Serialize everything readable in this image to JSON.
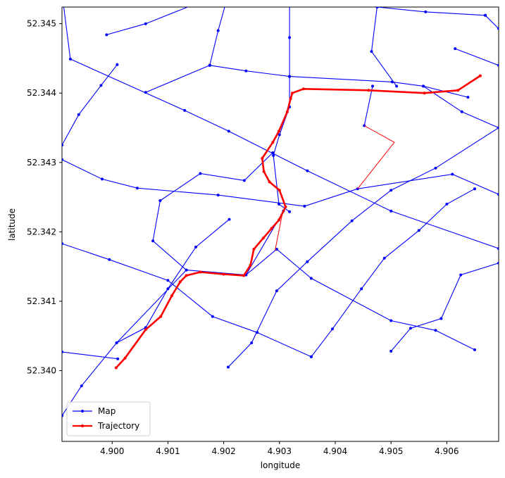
{
  "chart_data": {
    "type": "line",
    "title": "",
    "xlabel": "longitude",
    "ylabel": "latitude",
    "xlim": [
      4.8991,
      4.90693
    ],
    "ylim": [
      52.33898,
      52.34524
    ],
    "grid": false,
    "legend_placement": "lower-left",
    "x_ticks": [
      4.9,
      4.901,
      4.902,
      4.903,
      4.904,
      4.905,
      4.906
    ],
    "x_tick_labels": [
      "4.900",
      "4.901",
      "4.902",
      "4.903",
      "4.904",
      "4.905",
      "4.906"
    ],
    "y_ticks": [
      52.34,
      52.341,
      52.342,
      52.343,
      52.344,
      52.345
    ],
    "y_tick_labels": [
      "52.340",
      "52.341",
      "52.342",
      "52.343",
      "52.344",
      "52.345"
    ],
    "colors": {
      "map": "#0000ff",
      "trajectory": "#ff0000"
    },
    "series": [
      {
        "name": "Map",
        "color": "#0000ff",
        "segments": [
          [
            [
              4.8991,
              52.34544
            ],
            [
              4.89925,
              52.34449
            ],
            [
              4.9013,
              52.34375
            ],
            [
              4.90209,
              52.34345
            ],
            [
              4.9035,
              52.34288
            ],
            [
              4.905,
              52.3423
            ],
            [
              4.90693,
              52.34176
            ]
          ],
          [
            [
              4.8991,
              52.34304
            ],
            [
              4.89982,
              52.34276
            ],
            [
              4.90045,
              52.34263
            ],
            [
              4.9019,
              52.34253
            ],
            [
              4.90345,
              52.34237
            ],
            [
              4.9044,
              52.34262
            ],
            [
              4.9061,
              52.34283
            ],
            [
              4.90693,
              52.34254
            ]
          ],
          [
            [
              4.8991,
              52.34183
            ],
            [
              4.89995,
              52.3416
            ],
            [
              4.901,
              52.3413
            ],
            [
              4.9018,
              52.34078
            ],
            [
              4.9026,
              52.34055
            ],
            [
              4.90357,
              52.3402
            ]
          ],
          [
            [
              4.8991,
              52.34325
            ],
            [
              4.8994,
              52.34369
            ],
            [
              4.8998,
              52.34411
            ],
            [
              4.90009,
              52.34441
            ]
          ],
          [
            [
              4.8999,
              52.34484
            ],
            [
              4.9006,
              52.345
            ],
            [
              4.90154,
              52.3453
            ]
          ],
          [
            [
              4.9006,
              52.34401
            ],
            [
              4.90175,
              52.3444
            ]
          ],
          [
            [
              4.90175,
              52.3444
            ],
            [
              4.9024,
              52.34432
            ],
            [
              4.90318,
              52.34424
            ],
            [
              4.90502,
              52.34416
            ],
            [
              4.90558,
              52.3441
            ],
            [
              4.90638,
              52.34394
            ]
          ],
          [
            [
              4.90175,
              52.3444
            ],
            [
              4.9019,
              52.3449
            ],
            [
              4.90209,
              52.34545
            ]
          ],
          [
            [
              4.90318,
              52.34424
            ],
            [
              4.90318,
              52.3448
            ],
            [
              4.90318,
              52.34545
            ]
          ],
          [
            [
              4.90318,
              52.34424
            ],
            [
              4.90318,
              52.3438
            ],
            [
              4.903,
              52.3434
            ],
            [
              4.90289,
              52.3431
            ],
            [
              4.90299,
              52.3424
            ],
            [
              4.90318,
              52.34229
            ]
          ],
          [
            [
              4.90288,
              52.34314
            ],
            [
              4.90237,
              52.34274
            ],
            [
              4.90158,
              52.34284
            ],
            [
              4.90086,
              52.34245
            ],
            [
              4.90073,
              52.34187
            ],
            [
              4.90133,
              52.34145
            ],
            [
              4.9024,
              52.34138
            ],
            [
              4.90307,
              52.3423
            ]
          ],
          [
            [
              4.90133,
              52.34145
            ],
            [
              4.90008,
              52.3404
            ],
            [
              4.89945,
              52.33978
            ],
            [
              4.8991,
              52.33935
            ]
          ],
          [
            [
              4.8991,
              52.34027
            ],
            [
              4.9001,
              52.34017
            ]
          ],
          [
            [
              4.90008,
              52.3404
            ],
            [
              4.9006,
              52.34062
            ],
            [
              4.901,
              52.34118
            ],
            [
              4.9015,
              52.34178
            ],
            [
              4.9021,
              52.34218
            ]
          ],
          [
            [
              4.9024,
              52.34138
            ],
            [
              4.90295,
              52.34175
            ],
            [
              4.90357,
              52.34133
            ],
            [
              4.905,
              52.34072
            ],
            [
              4.9058,
              52.34058
            ],
            [
              4.9065,
              52.3403
            ]
          ],
          [
            [
              4.90208,
              52.34005
            ],
            [
              4.9025,
              52.3404
            ],
            [
              4.90295,
              52.34115
            ],
            [
              4.9035,
              52.34157
            ],
            [
              4.9043,
              52.34216
            ],
            [
              4.905,
              52.3426
            ],
            [
              4.9058,
              52.34292
            ],
            [
              4.90693,
              52.3435
            ]
          ],
          [
            [
              4.90357,
              52.3402
            ],
            [
              4.90395,
              52.3406
            ],
            [
              4.90447,
              52.34118
            ],
            [
              4.90488,
              52.34162
            ],
            [
              4.9055,
              52.34202
            ],
            [
              4.906,
              52.3424
            ],
            [
              4.9065,
              52.34262
            ]
          ],
          [
            [
              4.905,
              52.34028
            ],
            [
              4.90535,
              52.34061
            ],
            [
              4.9059,
              52.34075
            ],
            [
              4.90625,
              52.34138
            ],
            [
              4.90693,
              52.34155
            ]
          ],
          [
            [
              4.9051,
              52.3441
            ],
            [
              4.90465,
              52.3446
            ],
            [
              4.90475,
              52.34524
            ]
          ],
          [
            [
              4.90452,
              52.34353
            ],
            [
              4.90467,
              52.3441
            ]
          ],
          [
            [
              4.90475,
              52.34524
            ],
            [
              4.90562,
              52.34517
            ],
            [
              4.90669,
              52.34512
            ]
          ],
          [
            [
              4.90669,
              52.34512
            ],
            [
              4.90693,
              52.34493
            ]
          ],
          [
            [
              4.90615,
              52.34464
            ],
            [
              4.90693,
              52.3444
            ]
          ],
          [
            [
              4.90558,
              52.3441
            ],
            [
              4.90627,
              52.34373
            ],
            [
              4.90693,
              52.3435
            ]
          ]
        ]
      },
      {
        "name": "Trajectory",
        "color": "#ff0000",
        "points": [
          [
            4.90007,
            52.34004
          ],
          [
            4.90023,
            52.34018
          ],
          [
            4.9006,
            52.34059
          ],
          [
            4.90087,
            52.34078
          ],
          [
            4.90107,
            52.34108
          ],
          [
            4.90122,
            52.34128
          ],
          [
            4.90133,
            52.34137
          ],
          [
            4.90158,
            52.34142
          ],
          [
            4.902,
            52.34139
          ],
          [
            4.90236,
            52.34137
          ],
          [
            4.90248,
            52.34152
          ],
          [
            4.90254,
            52.34175
          ],
          [
            4.90271,
            52.34191
          ],
          [
            4.90286,
            52.34205
          ],
          [
            4.90299,
            52.34217
          ],
          [
            4.90311,
            52.34236
          ],
          [
            4.903,
            52.3426
          ],
          [
            4.90282,
            52.34272
          ],
          [
            4.90272,
            52.34287
          ],
          [
            4.90269,
            52.34306
          ],
          [
            4.90288,
            52.34329
          ],
          [
            4.90299,
            52.34345
          ],
          [
            4.90314,
            52.34373
          ],
          [
            4.9032,
            52.34392
          ],
          [
            4.90323,
            52.344
          ],
          [
            4.90343,
            52.34406
          ],
          [
            4.9046,
            52.34404
          ],
          [
            4.9056,
            52.344
          ],
          [
            4.9062,
            52.34404
          ],
          [
            4.9066,
            52.34425
          ]
        ],
        "connectors": [
          [
            [
              4.90306,
              52.3423
            ],
            [
              4.90292,
              52.34173
            ]
          ],
          [
            [
              4.90452,
              52.34353
            ],
            [
              4.90506,
              52.34329
            ],
            [
              4.9044,
              52.34262
            ]
          ]
        ]
      }
    ]
  }
}
